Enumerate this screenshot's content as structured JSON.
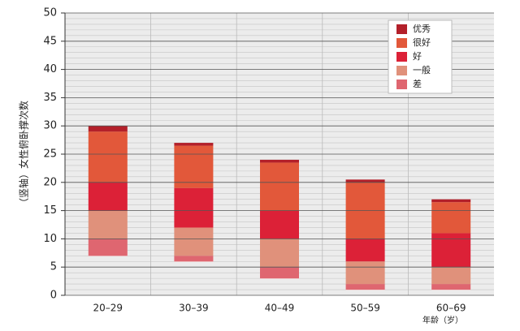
{
  "chart_data": {
    "type": "floating-stacked-bar",
    "y_label": "（竖轴）女性俯卧撑次数",
    "x_label": "年龄（岁）",
    "categories": [
      "20–29",
      "30–39",
      "40–49",
      "50–59",
      "60–69"
    ],
    "bar_bottoms": [
      7,
      6,
      3,
      1,
      1
    ],
    "series": [
      {
        "name": "差",
        "color": "#df6670",
        "values": [
          3,
          1,
          2,
          1,
          1
        ]
      },
      {
        "name": "一般",
        "color": "#e0917b",
        "values": [
          5,
          5,
          5,
          4,
          3
        ]
      },
      {
        "name": "好",
        "color": "#dc2137",
        "values": [
          5,
          7,
          5,
          4,
          6
        ]
      },
      {
        "name": "很好",
        "color": "#e2583a",
        "values": [
          9,
          7.5,
          8.5,
          10,
          5.5
        ]
      },
      {
        "name": "优秀",
        "color": "#b3202a",
        "values": [
          1,
          0.5,
          0.5,
          0.5,
          0.5
        ]
      }
    ],
    "ylim": [
      0,
      50
    ],
    "yticks": [
      0,
      5,
      10,
      15,
      20,
      25,
      30,
      35,
      40,
      45,
      50
    ],
    "grid": true
  }
}
